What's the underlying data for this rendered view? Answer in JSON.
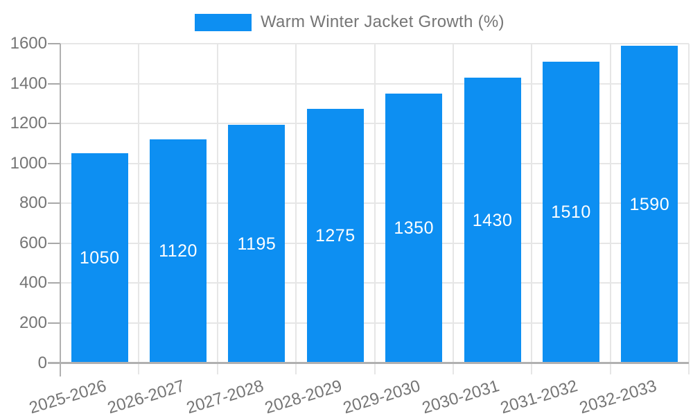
{
  "legend": {
    "label": "Warm Winter Jacket Growth (%)"
  },
  "chart_data": {
    "type": "bar",
    "title": "",
    "xlabel": "",
    "ylabel": "",
    "legend_position": "top",
    "grid": "both",
    "categories": [
      "2025-2026",
      "2026-2027",
      "2027-2028",
      "2028-2029",
      "2029-2030",
      "2030-2031",
      "2031-2032",
      "2032-2033"
    ],
    "series": [
      {
        "name": "Warm Winter Jacket Growth (%)",
        "values": [
          1050,
          1120,
          1195,
          1275,
          1350,
          1430,
          1510,
          1590
        ]
      }
    ],
    "value_labels": [
      "1050",
      "1120",
      "1195",
      "1275",
      "1350",
      "1430",
      "1510",
      "1590"
    ],
    "ylim": [
      0,
      1600
    ],
    "yticks": [
      0,
      200,
      400,
      600,
      800,
      1000,
      1200,
      1400,
      1600
    ],
    "colors": {
      "bar": "#0d8ff2",
      "value_text": "#ffffff",
      "axis_text": "#757575",
      "gridline": "#e6e6e6",
      "axis_line": "#b0b0b0",
      "tick_mark": "#a8a8a8"
    }
  }
}
